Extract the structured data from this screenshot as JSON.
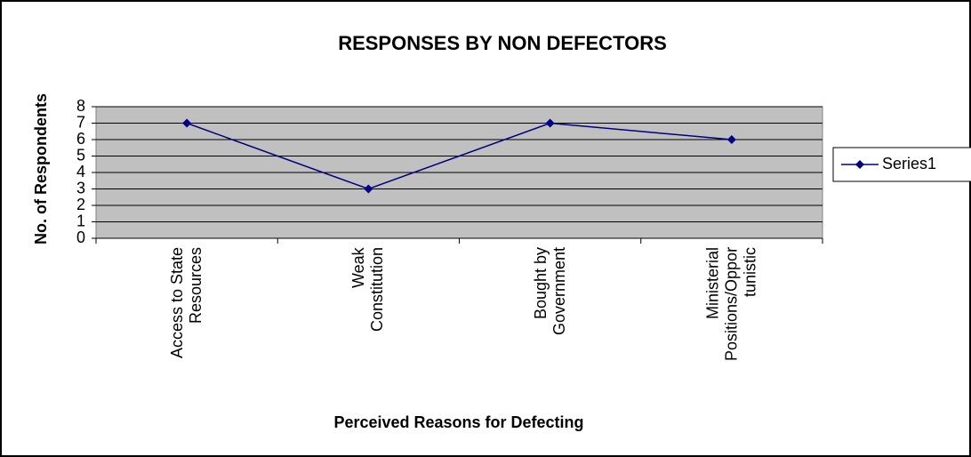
{
  "chart_data": {
    "type": "line",
    "title": "RESPONSES BY NON DEFECTORS",
    "x_label": "Perceived Reasons for Defecting",
    "y_label": "No. of Respondents",
    "categories": [
      "Access to State\nResources",
      "Weak\nConstitution",
      "Bought by\nGovernment",
      "Ministerial\nPositions/Oppor\ntunistic"
    ],
    "series": [
      {
        "name": "Series1",
        "color": "#000080",
        "values": [
          7,
          3,
          7,
          6
        ]
      }
    ],
    "ylim": [
      0,
      8
    ],
    "yticks": [
      0,
      1,
      2,
      3,
      4,
      5,
      6,
      7,
      8
    ],
    "grid": true,
    "legend": "right"
  }
}
